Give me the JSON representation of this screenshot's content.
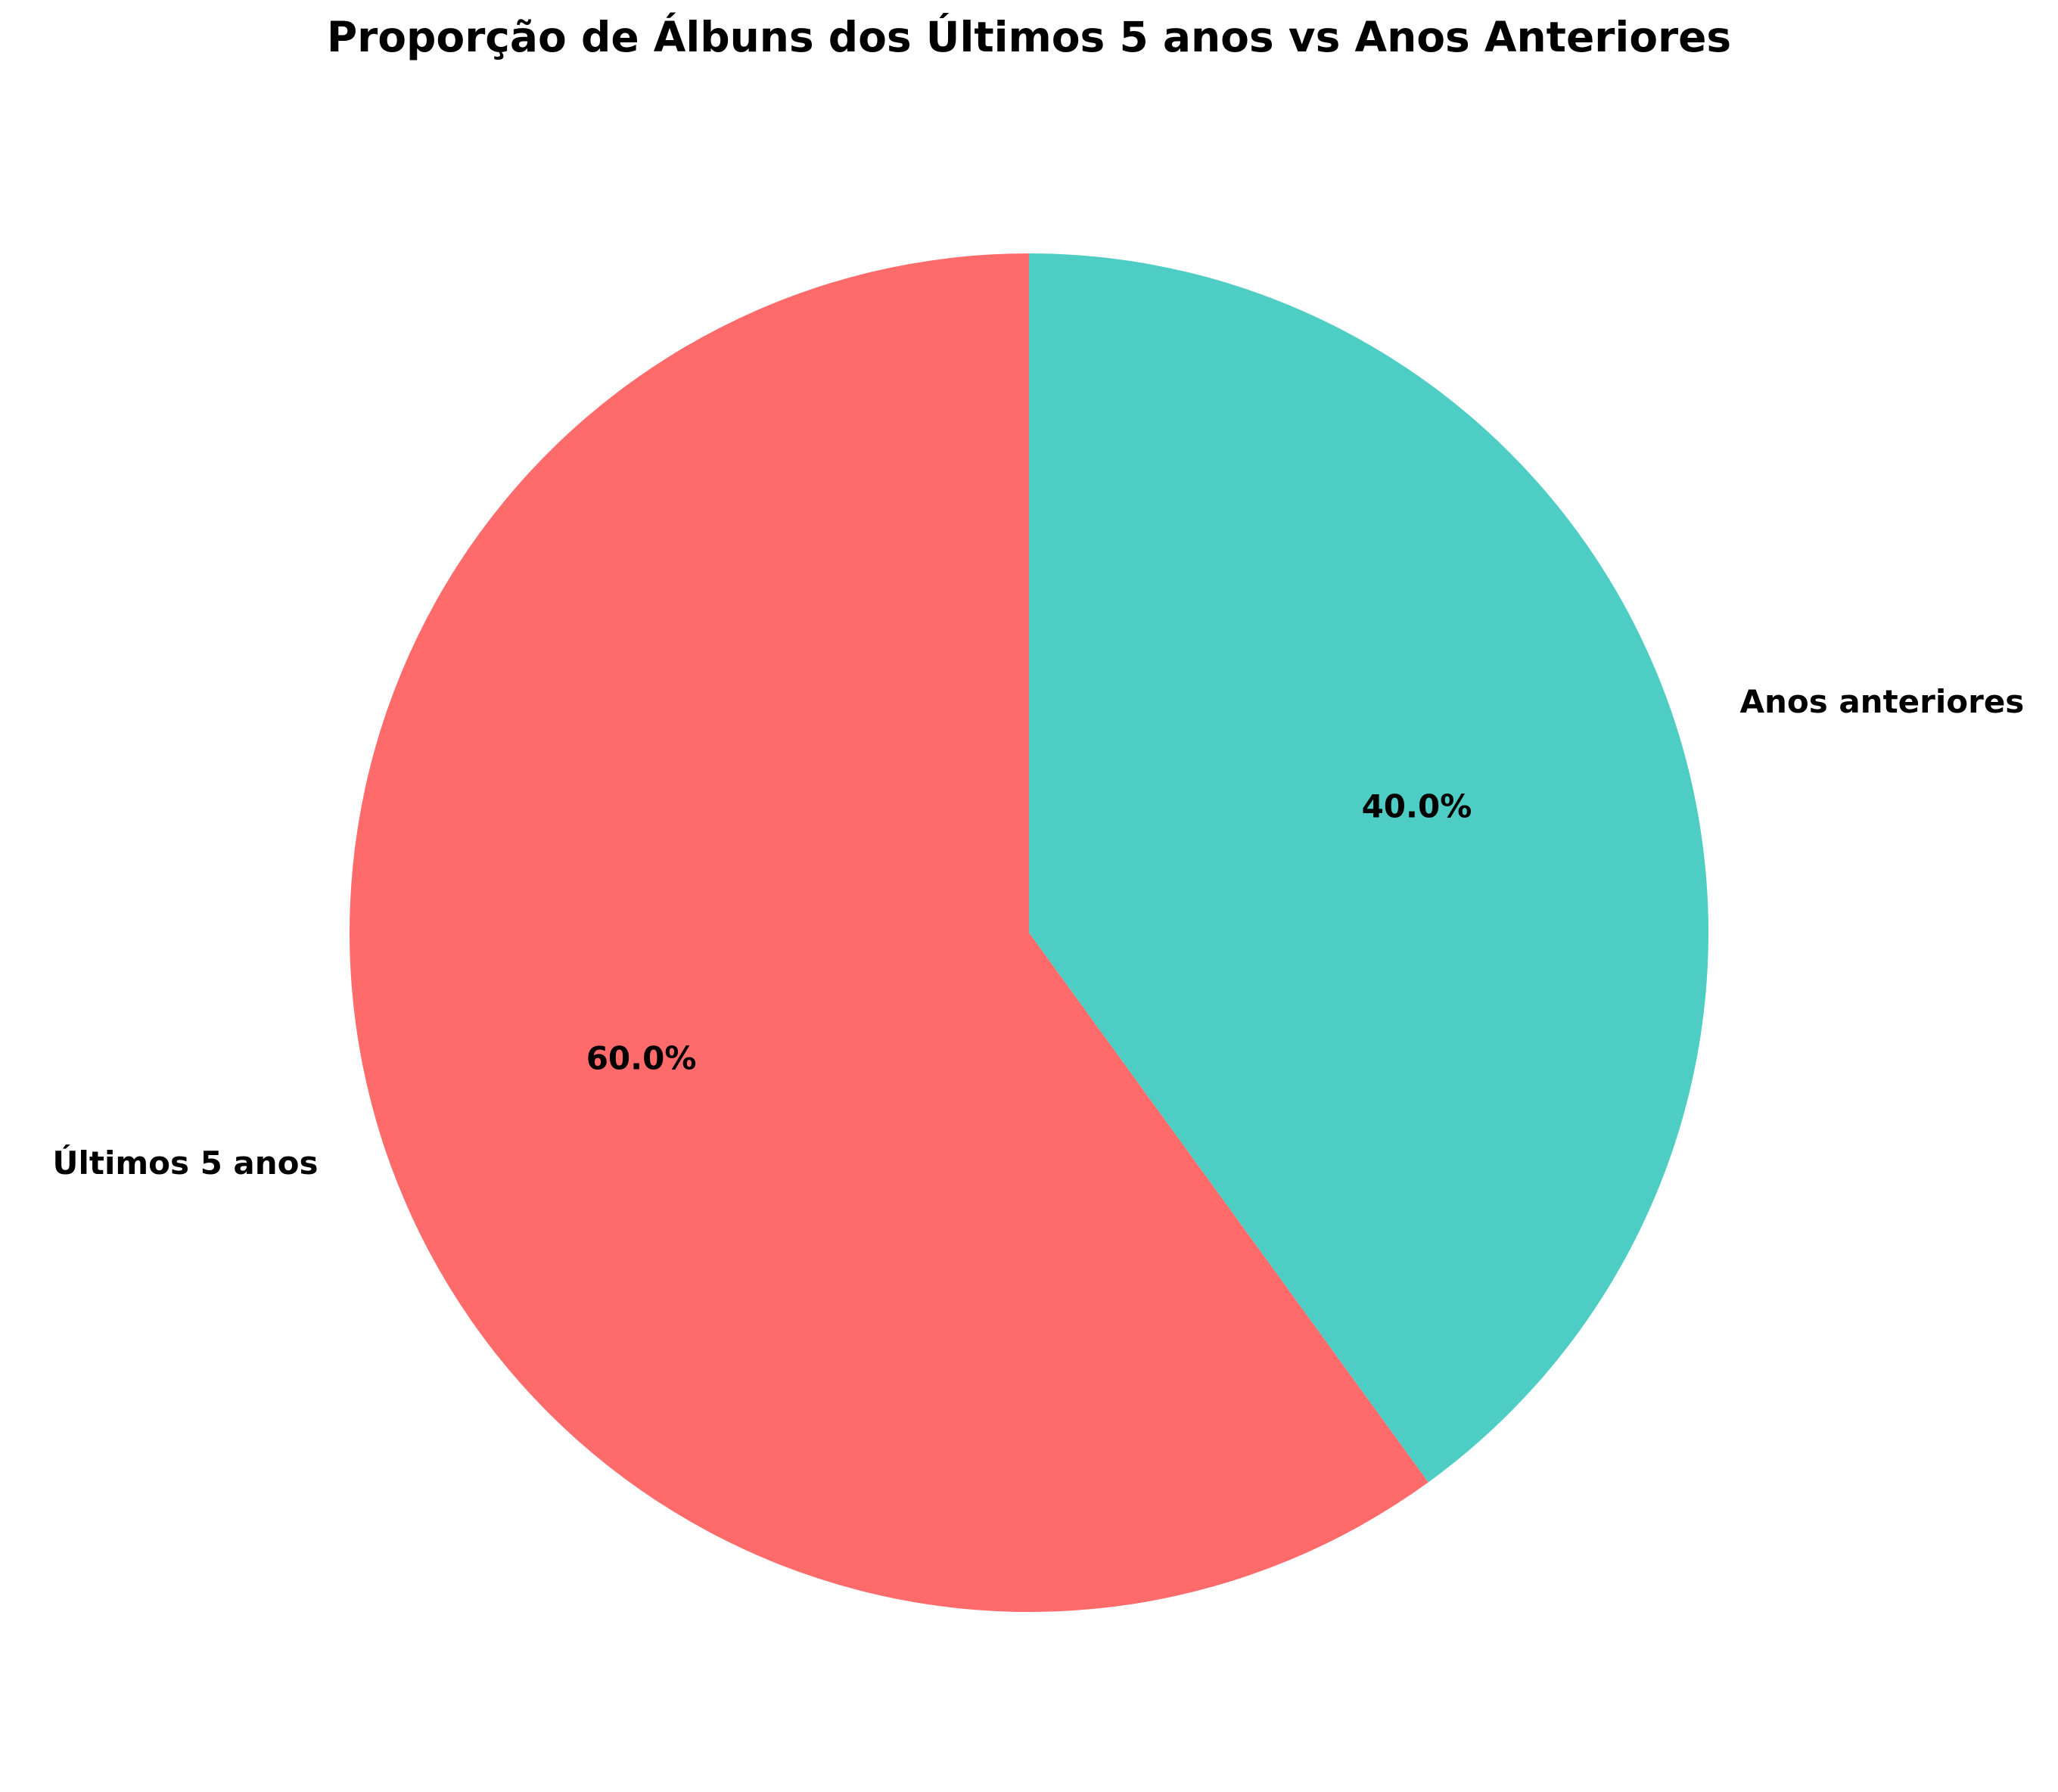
{
  "chart_data": {
    "type": "pie",
    "title": "Proporção de Álbuns dos Últimos 5 anos vs Anos Anteriores",
    "categories": [
      "Últimos 5 anos",
      "Anos anteriores"
    ],
    "values": [
      60,
      40
    ],
    "percent_labels": [
      "60.0%",
      "40.0%"
    ],
    "colors": [
      "#FF6B6B",
      "#4ECDC4"
    ],
    "start_angle_deg": 90,
    "direction": "counterclockwise",
    "legend": "none"
  }
}
